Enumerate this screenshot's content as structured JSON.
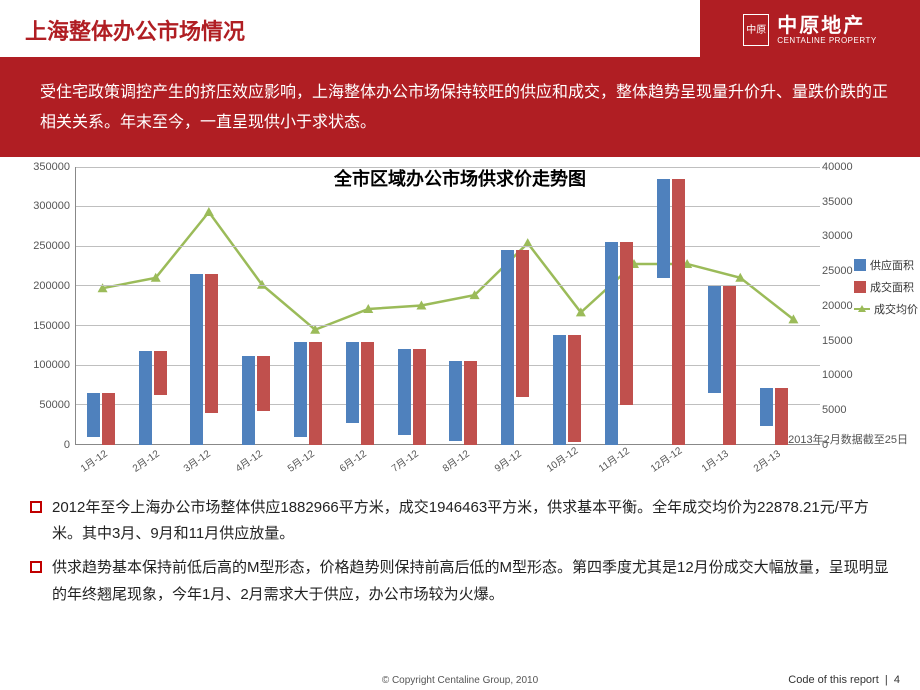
{
  "header": {
    "title": "上海整体办公市场情况",
    "logo_cn": "中原地产",
    "logo_en": "CENTALINE PROPERTY",
    "logo_icon": "中原"
  },
  "intro": "受住宅政策调控产生的挤压效应影响，上海整体办公市场保持较旺的供应和成交，整体趋势呈现量升价升、量跌价跌的正相关关系。年末至今，一直呈现供小于求状态。",
  "chart": {
    "title": "全市区域办公市场供求价走势图",
    "categories": [
      "1月-12",
      "2月-12",
      "3月-12",
      "4月-12",
      "5月-12",
      "6月-12",
      "7月-12",
      "8月-12",
      "9月-12",
      "10月-12",
      "11月-12",
      "12月-12",
      "1月-13",
      "2月-13"
    ],
    "supply": [
      55000,
      118000,
      215000,
      112000,
      120000,
      102000,
      108000,
      100000,
      245000,
      138000,
      255000,
      125000,
      135000,
      48000
    ],
    "deal": [
      65000,
      55000,
      175000,
      70000,
      130000,
      130000,
      120000,
      105000,
      185000,
      135000,
      205000,
      335000,
      200000,
      72000
    ],
    "price": [
      22500,
      24000,
      33500,
      23000,
      16500,
      19500,
      20000,
      21500,
      29000,
      19000,
      26000,
      26000,
      24000,
      18000
    ],
    "y_left": {
      "min": 0,
      "max": 350000,
      "step": 50000
    },
    "y_right": {
      "min": 0,
      "max": 40000,
      "step": 5000
    },
    "colors": {
      "supply": "#4f81bd",
      "deal": "#c0504d",
      "price": "#9bbb59",
      "grid": "#bfbfbf",
      "axis": "#888888",
      "bg": "#ffffff"
    },
    "legend": {
      "supply": "供应面积",
      "deal": "成交面积",
      "price": "成交均价"
    },
    "footnote": "2013年2月数据截至25日",
    "label_fontsize": 11
  },
  "bullets": [
    "2012年至今上海办公市场整体供应1882966平方米，成交1946463平方米，供求基本平衡。全年成交均价为22878.21元/平方米。其中3月、9月和11月供应放量。",
    "供求趋势基本保持前低后高的M型形态，价格趋势则保持前高后低的M型形态。第四季度尤其是12月份成交大幅放量，呈现明显的年终翘尾现象，今年1月、2月需求大于供应，办公市场较为火爆。"
  ],
  "footer": {
    "copyright": "© Copyright  Centaline Group, 2010",
    "code": "Code of this report",
    "page": "4"
  }
}
